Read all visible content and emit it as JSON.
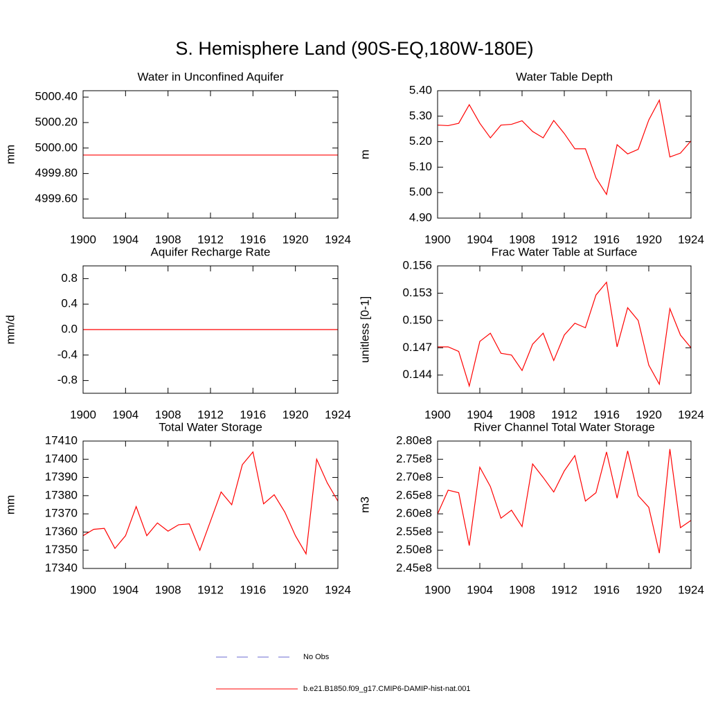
{
  "title": "S. Hemisphere Land (90S-EQ,180W-180E)",
  "legend": [
    {
      "name": "No Obs",
      "color": "#6a6ad0",
      "dash": true
    },
    {
      "name": "b.e21.B1850.f09_g17.CMIP6-DAMIP-hist-nat.001",
      "color": "#ff0000",
      "dash": false
    }
  ],
  "chart_data": [
    {
      "type": "line",
      "title": "Water in Unconfined Aquifer",
      "ylabel": "mm",
      "x": [
        1900,
        1901,
        1902,
        1903,
        1904,
        1905,
        1906,
        1907,
        1908,
        1909,
        1910,
        1911,
        1912,
        1913,
        1914,
        1915,
        1916,
        1917,
        1918,
        1919,
        1920,
        1921,
        1922,
        1923,
        1924
      ],
      "xlim": [
        1900,
        1924
      ],
      "xticks": [
        1900,
        1904,
        1908,
        1912,
        1916,
        1920,
        1924
      ],
      "ylim": [
        4999.45,
        5000.45
      ],
      "yticks": [
        {
          "value": 4999.6,
          "label": "4999.60"
        },
        {
          "value": 4999.8,
          "label": "4999.80"
        },
        {
          "value": 5000.0,
          "label": "5000.00"
        },
        {
          "value": 5000.2,
          "label": "5000.20"
        },
        {
          "value": 5000.4,
          "label": "5000.40"
        }
      ],
      "series": [
        {
          "color": "#ff0000",
          "values": [
            4999.945,
            4999.945,
            4999.945,
            4999.945,
            4999.945,
            4999.945,
            4999.945,
            4999.945,
            4999.945,
            4999.945,
            4999.945,
            4999.945,
            4999.945,
            4999.945,
            4999.945,
            4999.945,
            4999.945,
            4999.945,
            4999.945,
            4999.945,
            4999.945,
            4999.945,
            4999.945,
            4999.945,
            4999.945
          ]
        }
      ]
    },
    {
      "type": "line",
      "title": "Water Table Depth",
      "ylabel": "m",
      "x": [
        1900,
        1901,
        1902,
        1903,
        1904,
        1905,
        1906,
        1907,
        1908,
        1909,
        1910,
        1911,
        1912,
        1913,
        1914,
        1915,
        1916,
        1917,
        1918,
        1919,
        1920,
        1921,
        1922,
        1923,
        1924
      ],
      "xlim": [
        1900,
        1924
      ],
      "xticks": [
        1900,
        1904,
        1908,
        1912,
        1916,
        1920,
        1924
      ],
      "ylim": [
        4.9,
        5.4
      ],
      "yticks": [
        {
          "value": 4.9,
          "label": "4.90"
        },
        {
          "value": 5.0,
          "label": "5.00"
        },
        {
          "value": 5.1,
          "label": "5.10"
        },
        {
          "value": 5.2,
          "label": "5.20"
        },
        {
          "value": 5.3,
          "label": "5.30"
        },
        {
          "value": 5.4,
          "label": "5.40"
        }
      ],
      "series": [
        {
          "color": "#ff0000",
          "values": [
            5.265,
            5.263,
            5.272,
            5.345,
            5.272,
            5.215,
            5.265,
            5.268,
            5.282,
            5.24,
            5.215,
            5.283,
            5.232,
            5.172,
            5.172,
            5.058,
            4.993,
            5.188,
            5.152,
            5.17,
            5.285,
            5.363,
            5.14,
            5.155,
            5.203
          ]
        }
      ]
    },
    {
      "type": "line",
      "title": "Aquifer Recharge Rate",
      "ylabel": "mm/d",
      "x": [
        1900,
        1901,
        1902,
        1903,
        1904,
        1905,
        1906,
        1907,
        1908,
        1909,
        1910,
        1911,
        1912,
        1913,
        1914,
        1915,
        1916,
        1917,
        1918,
        1919,
        1920,
        1921,
        1922,
        1923,
        1924
      ],
      "xlim": [
        1900,
        1924
      ],
      "xticks": [
        1900,
        1904,
        1908,
        1912,
        1916,
        1920,
        1924
      ],
      "ylim": [
        -1,
        1
      ],
      "yticks": [
        -0.8,
        -0.4,
        {
          "value": 0,
          "label": "0.0"
        },
        0.4,
        0.8
      ],
      "series": [
        {
          "color": "#ff0000",
          "values": [
            0,
            0,
            0,
            0,
            0,
            0,
            0,
            0,
            0,
            0,
            0,
            0,
            0,
            0,
            0,
            0,
            0,
            0,
            0,
            0,
            0,
            0,
            0,
            0,
            0
          ]
        }
      ]
    },
    {
      "type": "line",
      "title": "Frac Water Table at Surface",
      "ylabel": "unitless [0-1]",
      "x": [
        1900,
        1901,
        1902,
        1903,
        1904,
        1905,
        1906,
        1907,
        1908,
        1909,
        1910,
        1911,
        1912,
        1913,
        1914,
        1915,
        1916,
        1917,
        1918,
        1919,
        1920,
        1921,
        1922,
        1923,
        1924
      ],
      "xlim": [
        1900,
        1924
      ],
      "xticks": [
        1900,
        1904,
        1908,
        1912,
        1916,
        1920,
        1924
      ],
      "ylim": [
        0.142,
        0.156
      ],
      "yticks": [
        0.144,
        0.147,
        {
          "value": 0.15,
          "label": "0.150"
        },
        0.153,
        0.156
      ],
      "series": [
        {
          "color": "#ff0000",
          "values": [
            0.1471,
            0.1471,
            0.1466,
            0.1428,
            0.1477,
            0.1486,
            0.1464,
            0.1462,
            0.1445,
            0.1474,
            0.1486,
            0.1456,
            0.1484,
            0.1497,
            0.1492,
            0.1528,
            0.1542,
            0.1471,
            0.1514,
            0.15,
            0.1451,
            0.143,
            0.1513,
            0.1484,
            0.147
          ]
        }
      ]
    },
    {
      "type": "line",
      "title": "Total Water Storage",
      "ylabel": "mm",
      "x": [
        1900,
        1901,
        1902,
        1903,
        1904,
        1905,
        1906,
        1907,
        1908,
        1909,
        1910,
        1911,
        1912,
        1913,
        1914,
        1915,
        1916,
        1917,
        1918,
        1919,
        1920,
        1921,
        1922,
        1923,
        1924
      ],
      "xlim": [
        1900,
        1924
      ],
      "xticks": [
        1900,
        1904,
        1908,
        1912,
        1916,
        1920,
        1924
      ],
      "ylim": [
        17340,
        17410
      ],
      "yticks": [
        17340,
        17350,
        17360,
        17370,
        17380,
        17390,
        17400,
        17410
      ],
      "series": [
        {
          "color": "#ff0000",
          "values": [
            17358,
            17361.5,
            17362,
            17351,
            17358,
            17374,
            17358,
            17365,
            17360.5,
            17364,
            17364.5,
            17350,
            17366,
            17382,
            17375,
            17397,
            17404,
            17375.5,
            17380.5,
            17371,
            17358,
            17348,
            17400,
            17387,
            17377
          ]
        }
      ]
    },
    {
      "type": "line",
      "title": "River Channel Total Water Storage",
      "ylabel": "m3",
      "x": [
        1900,
        1901,
        1902,
        1903,
        1904,
        1905,
        1906,
        1907,
        1908,
        1909,
        1910,
        1911,
        1912,
        1913,
        1914,
        1915,
        1916,
        1917,
        1918,
        1919,
        1920,
        1921,
        1922,
        1923,
        1924
      ],
      "xlim": [
        1900,
        1924
      ],
      "xticks": [
        1900,
        1904,
        1908,
        1912,
        1916,
        1920,
        1924
      ],
      "ylim": [
        245000000,
        280000000
      ],
      "yticks": [
        {
          "value": 245000000,
          "label": "2.45e8"
        },
        {
          "value": 250000000,
          "label": "2.50e8"
        },
        {
          "value": 255000000,
          "label": "2.55e8"
        },
        {
          "value": 260000000,
          "label": "2.60e8"
        },
        {
          "value": 265000000,
          "label": "2.65e8"
        },
        {
          "value": 270000000,
          "label": "2.70e8"
        },
        {
          "value": 275000000,
          "label": "2.75e8"
        },
        {
          "value": 280000000,
          "label": "2.80e8"
        }
      ],
      "series": [
        {
          "color": "#ff0000",
          "values": [
            260000000,
            266500000,
            265800000,
            251300000,
            272800000,
            267500000,
            258800000,
            261000000,
            256500000,
            273700000,
            270000000,
            266000000,
            271800000,
            276000000,
            263500000,
            265800000,
            277000000,
            264300000,
            277300000,
            265000000,
            261800000,
            249200000,
            277800000,
            256200000,
            258200000
          ]
        }
      ]
    }
  ]
}
